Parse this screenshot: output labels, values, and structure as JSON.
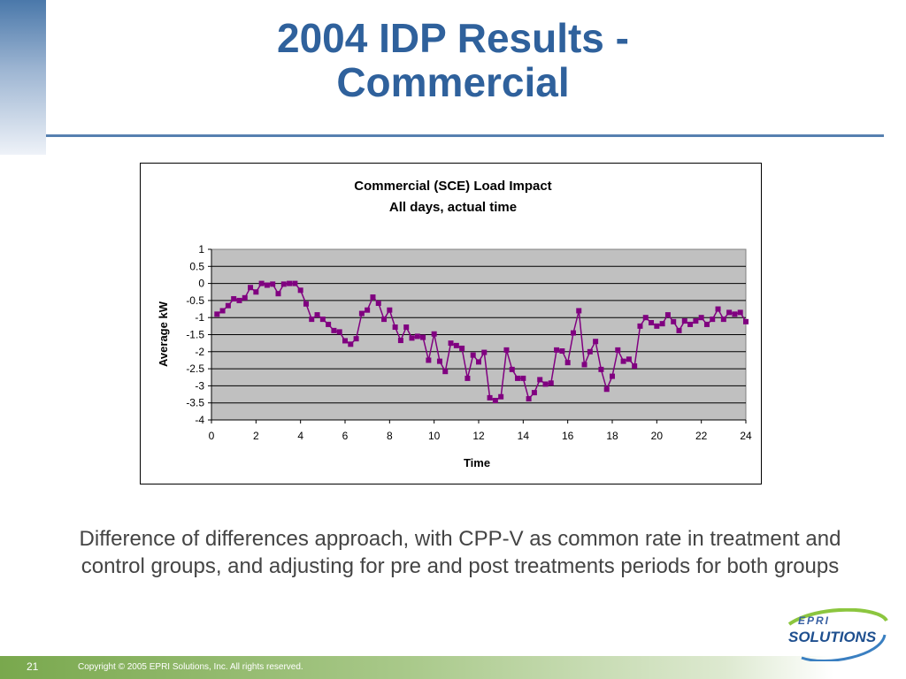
{
  "slide": {
    "title_line1": "2004 IDP Results -",
    "title_line2": "Commercial",
    "caption": "Difference of differences approach, with CPP-V as common rate in treatment and control groups, and adjusting for pre and post treatments periods for both groups",
    "page_number": "21",
    "copyright": "Copyright © 2005 EPRI Solutions, Inc. All rights reserved.",
    "logo_top": "EPRI",
    "logo_bottom": "SOLUTIONS"
  },
  "colors": {
    "title": "#2f619c",
    "series": "#800080",
    "plot_area": "#c0c0c0"
  },
  "chart_data": {
    "type": "line",
    "title": "Commercial (SCE) Load Impact",
    "subtitle": "All days, actual time",
    "xlabel": "Time",
    "ylabel": "Average kW",
    "xlim": [
      0,
      24
    ],
    "ylim": [
      -4,
      1
    ],
    "xticks": [
      "0",
      "2",
      "4",
      "6",
      "8",
      "10",
      "12",
      "14",
      "16",
      "18",
      "20",
      "22",
      "24"
    ],
    "yticks": [
      "1",
      "0.5",
      "0",
      "-0.5",
      "-1",
      "-1.5",
      "-2",
      "-2.5",
      "-3",
      "-3.5",
      "-4"
    ],
    "grid": "horizontal",
    "marker": "square",
    "x": [
      0.25,
      0.5,
      0.75,
      1,
      1.25,
      1.5,
      1.75,
      2,
      2.25,
      2.5,
      2.75,
      3,
      3.25,
      3.5,
      3.75,
      4,
      4.25,
      4.5,
      4.75,
      5,
      5.25,
      5.5,
      5.75,
      6,
      6.25,
      6.5,
      6.75,
      7,
      7.25,
      7.5,
      7.75,
      8,
      8.25,
      8.5,
      8.75,
      9,
      9.25,
      9.5,
      9.75,
      10,
      10.25,
      10.5,
      10.75,
      11,
      11.25,
      11.5,
      11.75,
      12,
      12.25,
      12.5,
      12.75,
      13,
      13.25,
      13.5,
      13.75,
      14,
      14.25,
      14.5,
      14.75,
      15,
      15.25,
      15.5,
      15.75,
      16,
      16.25,
      16.5,
      16.75,
      17,
      17.25,
      17.5,
      17.75,
      18,
      18.25,
      18.5,
      18.75,
      19,
      19.25,
      19.5,
      19.75,
      20,
      20.25,
      20.5,
      20.75,
      21,
      21.25,
      21.5,
      21.75,
      22,
      22.25,
      22.5,
      22.75,
      23,
      23.25,
      23.5,
      23.75,
      24
    ],
    "y": [
      -0.9,
      -0.8,
      -0.65,
      -0.45,
      -0.5,
      -0.42,
      -0.12,
      -0.25,
      0,
      -0.05,
      -0.02,
      -0.3,
      -0.02,
      0,
      0,
      -0.2,
      -0.6,
      -1.05,
      -0.92,
      -1.05,
      -1.2,
      -1.38,
      -1.42,
      -1.68,
      -1.78,
      -1.62,
      -0.88,
      -0.78,
      -0.4,
      -0.58,
      -1.05,
      -0.78,
      -1.28,
      -1.67,
      -1.28,
      -1.6,
      -1.55,
      -1.58,
      -2.25,
      -1.48,
      -2.28,
      -2.58,
      -1.75,
      -1.82,
      -1.9,
      -2.78,
      -2.1,
      -2.3,
      -2.02,
      -3.35,
      -3.43,
      -3.32,
      -1.95,
      -2.52,
      -2.78,
      -2.78,
      -3.38,
      -3.2,
      -2.82,
      -2.95,
      -2.92,
      -1.95,
      -1.98,
      -2.32,
      -1.45,
      -0.8,
      -2.38,
      -2,
      -1.7,
      -2.52,
      -3.1,
      -2.72,
      -1.95,
      -2.28,
      -2.22,
      -2.42,
      -1.25,
      -1,
      -1.15,
      -1.25,
      -1.18,
      -0.92,
      -1.12,
      -1.38,
      -1.1,
      -1.2,
      -1.1,
      -1,
      -1.2,
      -1.05,
      -0.75,
      -1.05,
      -0.85,
      -0.9,
      -0.85,
      -1.12
    ]
  }
}
